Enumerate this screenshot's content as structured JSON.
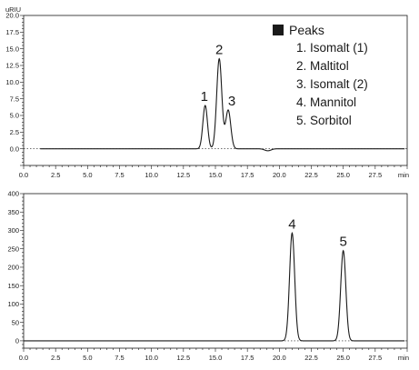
{
  "chart_data": [
    {
      "type": "line",
      "ylabel": "uRIU",
      "xlabel": "min",
      "xlim": [
        0,
        30
      ],
      "ylim": [
        -2.5,
        20
      ],
      "x_ticks": [
        "0.0",
        "2.5",
        "5.0",
        "7.5",
        "10.0",
        "12.5",
        "15.0",
        "17.5",
        "20.0",
        "22.5",
        "25.0",
        "27.5"
      ],
      "y_ticks": [
        "0.0",
        "2.5",
        "5.0",
        "7.5",
        "10.0",
        "12.5",
        "15.0",
        "17.5",
        "20.0"
      ],
      "grid": false,
      "series": [
        {
          "color": "#1a1a1a",
          "peaks": [
            {
              "label": "1",
              "x": 14.2,
              "y": 6.5,
              "width": 0.18
            },
            {
              "label": "2",
              "x": 15.3,
              "y": 13.5,
              "width": 0.2
            },
            {
              "label": "3",
              "x": 16.0,
              "y": 5.8,
              "width": 0.2
            }
          ],
          "baseline": 0.0,
          "dip": {
            "x": 19.1,
            "y": -0.3
          }
        }
      ],
      "legend": {
        "placement": "top-right",
        "title": "Peaks",
        "items": [
          "1. Isomalt (1)",
          "2. Maltitol",
          "3. Isomalt (2)",
          "4. Mannitol",
          "5. Sorbitol"
        ]
      }
    },
    {
      "type": "line",
      "ylabel": "",
      "xlabel": "min",
      "xlim": [
        0,
        30
      ],
      "ylim": [
        -20,
        400
      ],
      "x_ticks": [
        "0.0",
        "2.5",
        "5.0",
        "7.5",
        "10.0",
        "12.5",
        "15.0",
        "17.5",
        "20.0",
        "22.5",
        "25.0",
        "27.5"
      ],
      "y_ticks": [
        "0",
        "50",
        "100",
        "150",
        "200",
        "250",
        "300",
        "350",
        "400"
      ],
      "grid": false,
      "series": [
        {
          "color": "#1a1a1a",
          "peaks": [
            {
              "label": "4",
              "x": 21.0,
              "y": 293,
              "width": 0.2
            },
            {
              "label": "5",
              "x": 25.0,
              "y": 245,
              "width": 0.2
            }
          ],
          "baseline": 0.0
        }
      ]
    }
  ]
}
